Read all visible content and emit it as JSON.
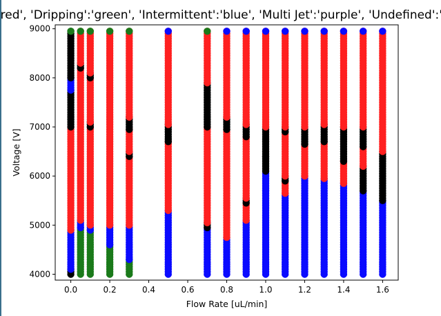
{
  "edge_color": "#3a6f8c",
  "chart_data": {
    "type": "scatter",
    "title": "'red', 'Dripping':'green', 'Intermittent':'blue', 'Multi Jet':'purple', 'Undefined':'b",
    "xlabel": "Flow Rate [uL/min]",
    "ylabel": "Voltage [V]",
    "xlim": [
      -0.08,
      1.68
    ],
    "ylim": [
      3880,
      9080
    ],
    "xticks": [
      0.0,
      0.2,
      0.4,
      0.6,
      0.8,
      1.0,
      1.2,
      1.4,
      1.6
    ],
    "xtick_labels": [
      "0.0",
      "0.2",
      "0.4",
      "0.6",
      "0.8",
      "1.0",
      "1.2",
      "1.4",
      "1.6"
    ],
    "yticks": [
      4000,
      5000,
      6000,
      7000,
      8000,
      9000
    ],
    "ytick_labels": [
      "4000",
      "5000",
      "6000",
      "7000",
      "8000",
      "9000"
    ],
    "grid": false,
    "colors": {
      "red": "#ff2020",
      "green": "#1a7a1a",
      "blue": "#0a0aff",
      "black": "#000000"
    },
    "series": [
      {
        "x": 0.0,
        "segments": [
          [
            4000,
            4100,
            "black"
          ],
          [
            4100,
            4900,
            "blue"
          ],
          [
            4900,
            7000,
            "red"
          ],
          [
            7000,
            7750,
            "black"
          ],
          [
            7750,
            8000,
            "blue"
          ],
          [
            8000,
            8950,
            "black"
          ]
        ],
        "top": "green"
      },
      {
        "x": 0.05,
        "segments": [
          [
            4000,
            4950,
            "green"
          ],
          [
            4950,
            5100,
            "blue"
          ],
          [
            5100,
            8200,
            "red"
          ],
          [
            8200,
            8300,
            "black"
          ],
          [
            8300,
            8950,
            "red"
          ]
        ],
        "top": "green"
      },
      {
        "x": 0.1,
        "segments": [
          [
            4000,
            4900,
            "green"
          ],
          [
            4900,
            5000,
            "blue"
          ],
          [
            5000,
            7000,
            "red"
          ],
          [
            7000,
            7100,
            "black"
          ],
          [
            7100,
            8000,
            "red"
          ],
          [
            8000,
            8100,
            "black"
          ],
          [
            8100,
            8950,
            "red"
          ]
        ],
        "top": "green"
      },
      {
        "x": 0.2,
        "segments": [
          [
            4000,
            4600,
            "green"
          ],
          [
            4600,
            5000,
            "blue"
          ],
          [
            5000,
            8950,
            "red"
          ]
        ],
        "top": "green"
      },
      {
        "x": 0.3,
        "segments": [
          [
            4000,
            4300,
            "green"
          ],
          [
            4300,
            5000,
            "blue"
          ],
          [
            5000,
            6400,
            "red"
          ],
          [
            6400,
            6500,
            "black"
          ],
          [
            6500,
            6950,
            "red"
          ],
          [
            6950,
            7200,
            "black"
          ],
          [
            7200,
            8950,
            "red"
          ]
        ],
        "top": "green"
      },
      {
        "x": 0.5,
        "segments": [
          [
            4000,
            5300,
            "blue"
          ],
          [
            5300,
            6700,
            "red"
          ],
          [
            6700,
            7050,
            "black"
          ],
          [
            7050,
            8950,
            "red"
          ]
        ],
        "top": "blue"
      },
      {
        "x": 0.7,
        "segments": [
          [
            4000,
            4950,
            "blue"
          ],
          [
            4950,
            5050,
            "black"
          ],
          [
            5050,
            7000,
            "red"
          ],
          [
            7000,
            7900,
            "black"
          ],
          [
            7900,
            8950,
            "red"
          ]
        ],
        "top": "green"
      },
      {
        "x": 0.8,
        "segments": [
          [
            4000,
            4750,
            "blue"
          ],
          [
            4750,
            6950,
            "red"
          ],
          [
            6950,
            7200,
            "black"
          ],
          [
            7200,
            8950,
            "red"
          ]
        ],
        "top": "blue"
      },
      {
        "x": 0.9,
        "segments": [
          [
            4000,
            5100,
            "blue"
          ],
          [
            5100,
            5450,
            "red"
          ],
          [
            5450,
            5550,
            "black"
          ],
          [
            5550,
            6800,
            "red"
          ],
          [
            6800,
            7050,
            "black"
          ],
          [
            7050,
            8950,
            "red"
          ]
        ],
        "top": "blue"
      },
      {
        "x": 1.0,
        "segments": [
          [
            4000,
            5700,
            "blue"
          ],
          [
            5700,
            6100,
            "blue"
          ],
          [
            6100,
            6400,
            "black"
          ],
          [
            6400,
            7000,
            "black"
          ],
          [
            7000,
            8950,
            "red"
          ]
        ],
        "top": "blue"
      },
      {
        "x": 1.1,
        "segments": [
          [
            4000,
            5650,
            "blue"
          ],
          [
            5650,
            5900,
            "red"
          ],
          [
            5900,
            6000,
            "black"
          ],
          [
            6000,
            6900,
            "red"
          ],
          [
            6900,
            7000,
            "black"
          ],
          [
            7000,
            8950,
            "red"
          ]
        ],
        "top": "blue"
      },
      {
        "x": 1.2,
        "segments": [
          [
            4000,
            6000,
            "blue"
          ],
          [
            6000,
            6650,
            "red"
          ],
          [
            6650,
            7000,
            "black"
          ],
          [
            7000,
            8950,
            "red"
          ]
        ],
        "top": "blue"
      },
      {
        "x": 1.3,
        "segments": [
          [
            4000,
            5950,
            "blue"
          ],
          [
            5950,
            6700,
            "red"
          ],
          [
            6700,
            7050,
            "black"
          ],
          [
            7050,
            8950,
            "red"
          ]
        ],
        "top": "blue"
      },
      {
        "x": 1.4,
        "segments": [
          [
            4000,
            5850,
            "blue"
          ],
          [
            5850,
            6300,
            "red"
          ],
          [
            6300,
            7000,
            "black"
          ],
          [
            7000,
            8950,
            "red"
          ]
        ],
        "top": "blue"
      },
      {
        "x": 1.5,
        "segments": [
          [
            4000,
            5700,
            "blue"
          ],
          [
            5700,
            6200,
            "black"
          ],
          [
            6200,
            6600,
            "red"
          ],
          [
            6600,
            7000,
            "black"
          ],
          [
            7000,
            8950,
            "red"
          ]
        ],
        "top": "blue"
      },
      {
        "x": 1.6,
        "segments": [
          [
            4000,
            5500,
            "blue"
          ],
          [
            5500,
            6500,
            "black"
          ],
          [
            6500,
            8950,
            "red"
          ]
        ],
        "top": "blue"
      }
    ]
  }
}
